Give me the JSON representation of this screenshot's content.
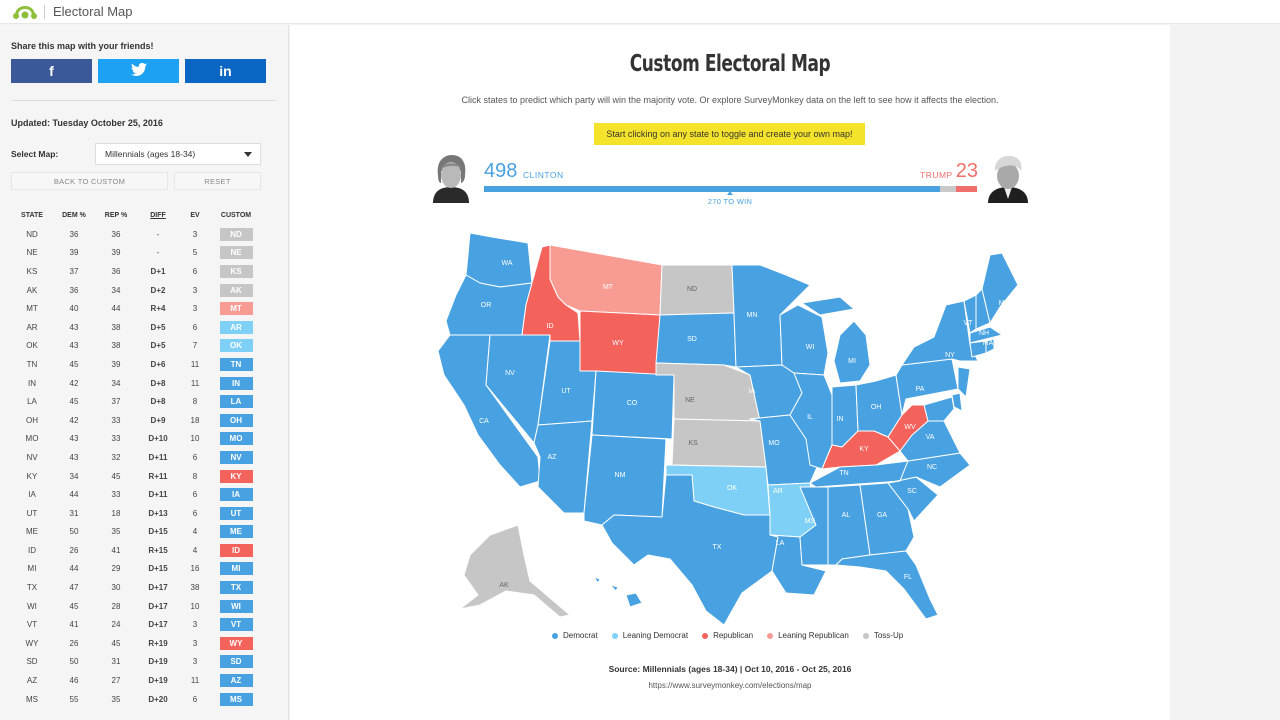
{
  "app": {
    "title": "Electoral Map"
  },
  "sidebar": {
    "share_title": "Share this map with your friends!",
    "share": {
      "facebook": "f",
      "twitter": "t",
      "linkedin": "in"
    },
    "updated": "Updated: Tuesday October 25, 2016",
    "select_label": "Select Map:",
    "select_value": "Millennials (ages 18-34)",
    "back_to_custom": "BACK TO CUSTOM",
    "reset": "RESET",
    "columns": [
      "STATE",
      "DEM %",
      "REP %",
      "DIFF",
      "EV",
      "CUSTOM"
    ],
    "rows": [
      {
        "state": "ND",
        "dem": "36",
        "rep": "36",
        "diff": "-",
        "ev": "3",
        "party": "toss"
      },
      {
        "state": "NE",
        "dem": "39",
        "rep": "39",
        "diff": "-",
        "ev": "5",
        "party": "toss"
      },
      {
        "state": "KS",
        "dem": "37",
        "rep": "36",
        "diff": "D+1",
        "ev": "6",
        "party": "toss"
      },
      {
        "state": "AK",
        "dem": "36",
        "rep": "34",
        "diff": "D+2",
        "ev": "3",
        "party": "toss"
      },
      {
        "state": "MT",
        "dem": "40",
        "rep": "44",
        "diff": "R+4",
        "ev": "3",
        "party": "lean-rep"
      },
      {
        "state": "AR",
        "dem": "43",
        "rep": "38",
        "diff": "D+5",
        "ev": "6",
        "party": "lean-dem"
      },
      {
        "state": "OK",
        "dem": "43",
        "rep": "38",
        "diff": "D+5",
        "ev": "7",
        "party": "lean-dem"
      },
      {
        "state": "TN",
        "dem": "45",
        "rep": "39",
        "diff": "D+6",
        "ev": "11",
        "party": "dem"
      },
      {
        "state": "IN",
        "dem": "42",
        "rep": "34",
        "diff": "D+8",
        "ev": "11",
        "party": "dem"
      },
      {
        "state": "LA",
        "dem": "45",
        "rep": "37",
        "diff": "D+8",
        "ev": "8",
        "party": "dem"
      },
      {
        "state": "OH",
        "dem": "42",
        "rep": "33",
        "diff": "D+9",
        "ev": "18",
        "party": "dem"
      },
      {
        "state": "MO",
        "dem": "43",
        "rep": "33",
        "diff": "D+10",
        "ev": "10",
        "party": "dem"
      },
      {
        "state": "NV",
        "dem": "43",
        "rep": "32",
        "diff": "D+11",
        "ev": "6",
        "party": "dem"
      },
      {
        "state": "KY",
        "dem": "34",
        "rep": "45",
        "diff": "R+11",
        "ev": "8",
        "party": "rep"
      },
      {
        "state": "IA",
        "dem": "44",
        "rep": "33",
        "diff": "D+11",
        "ev": "6",
        "party": "dem"
      },
      {
        "state": "UT",
        "dem": "31",
        "rep": "18",
        "diff": "D+13",
        "ev": "6",
        "party": "dem"
      },
      {
        "state": "ME",
        "dem": "50",
        "rep": "35",
        "diff": "D+15",
        "ev": "4",
        "party": "dem"
      },
      {
        "state": "ID",
        "dem": "26",
        "rep": "41",
        "diff": "R+15",
        "ev": "4",
        "party": "rep"
      },
      {
        "state": "MI",
        "dem": "44",
        "rep": "29",
        "diff": "D+15",
        "ev": "16",
        "party": "dem"
      },
      {
        "state": "TX",
        "dem": "47",
        "rep": "30",
        "diff": "D+17",
        "ev": "38",
        "party": "dem"
      },
      {
        "state": "WI",
        "dem": "45",
        "rep": "28",
        "diff": "D+17",
        "ev": "10",
        "party": "dem"
      },
      {
        "state": "VT",
        "dem": "41",
        "rep": "24",
        "diff": "D+17",
        "ev": "3",
        "party": "dem"
      },
      {
        "state": "WY",
        "dem": "26",
        "rep": "45",
        "diff": "R+19",
        "ev": "3",
        "party": "rep"
      },
      {
        "state": "SD",
        "dem": "50",
        "rep": "31",
        "diff": "D+19",
        "ev": "3",
        "party": "dem"
      },
      {
        "state": "AZ",
        "dem": "46",
        "rep": "27",
        "diff": "D+19",
        "ev": "11",
        "party": "dem"
      },
      {
        "state": "MS",
        "dem": "55",
        "rep": "35",
        "diff": "D+20",
        "ev": "6",
        "party": "dem"
      }
    ]
  },
  "main": {
    "title": "Custom Electoral Map",
    "subtitle": "Click states to predict which party will win the majority vote. Or explore SurveyMonkey data on the left to see how it affects the election.",
    "hint": "Start clicking on any state to toggle and create your own map!",
    "clinton": {
      "count": "498",
      "name": "CLINTON"
    },
    "trump": {
      "count": "23",
      "name": "TRUMP"
    },
    "win_label": "270 TO WIN",
    "bar": {
      "dem": 498,
      "tossup": 17,
      "rep": 23,
      "total": 538
    },
    "legend": [
      "Democrat",
      "Leaning Democrat",
      "Republican",
      "Leaning Republican",
      "Toss-Up"
    ],
    "source": "Source: Millennials (ages 18-34) | Oct 10, 2016 - Oct 25, 2016",
    "url": "https://www.surveymonkey.com/elections/map"
  },
  "colors": {
    "dem": "#48a1e0",
    "lean-dem": "#7fd0f7",
    "rep": "#f4625c",
    "lean-rep": "#f79b93",
    "toss": "#c6c6c6"
  },
  "map_states": [
    {
      "id": "WA",
      "party": "dem"
    },
    {
      "id": "OR",
      "party": "dem"
    },
    {
      "id": "CA",
      "party": "dem"
    },
    {
      "id": "NV",
      "party": "dem"
    },
    {
      "id": "ID",
      "party": "rep"
    },
    {
      "id": "MT",
      "party": "lean-rep"
    },
    {
      "id": "WY",
      "party": "rep"
    },
    {
      "id": "UT",
      "party": "dem"
    },
    {
      "id": "AZ",
      "party": "dem"
    },
    {
      "id": "CO",
      "party": "dem"
    },
    {
      "id": "NM",
      "party": "dem"
    },
    {
      "id": "ND",
      "party": "toss"
    },
    {
      "id": "SD",
      "party": "dem"
    },
    {
      "id": "NE",
      "party": "toss"
    },
    {
      "id": "KS",
      "party": "toss"
    },
    {
      "id": "OK",
      "party": "lean-dem"
    },
    {
      "id": "TX",
      "party": "dem"
    },
    {
      "id": "MN",
      "party": "dem"
    },
    {
      "id": "IA",
      "party": "dem"
    },
    {
      "id": "MO",
      "party": "dem"
    },
    {
      "id": "AR",
      "party": "lean-dem"
    },
    {
      "id": "LA",
      "party": "dem"
    },
    {
      "id": "WI",
      "party": "dem"
    },
    {
      "id": "IL",
      "party": "dem"
    },
    {
      "id": "MI",
      "party": "dem"
    },
    {
      "id": "IN",
      "party": "dem"
    },
    {
      "id": "OH",
      "party": "dem"
    },
    {
      "id": "KY",
      "party": "rep"
    },
    {
      "id": "TN",
      "party": "dem"
    },
    {
      "id": "MS",
      "party": "dem"
    },
    {
      "id": "AL",
      "party": "dem"
    },
    {
      "id": "GA",
      "party": "dem"
    },
    {
      "id": "FL",
      "party": "dem"
    },
    {
      "id": "SC",
      "party": "dem"
    },
    {
      "id": "NC",
      "party": "dem"
    },
    {
      "id": "VA",
      "party": "dem"
    },
    {
      "id": "WV",
      "party": "rep"
    },
    {
      "id": "PA",
      "party": "dem"
    },
    {
      "id": "NY",
      "party": "dem"
    },
    {
      "id": "VT",
      "party": "dem"
    },
    {
      "id": "NH",
      "party": "dem"
    },
    {
      "id": "ME",
      "party": "dem"
    },
    {
      "id": "MA",
      "party": "dem"
    },
    {
      "id": "CT",
      "party": "dem"
    },
    {
      "id": "RI",
      "party": "dem"
    },
    {
      "id": "NJ",
      "party": "dem"
    },
    {
      "id": "DE",
      "party": "dem"
    },
    {
      "id": "MD",
      "party": "dem"
    },
    {
      "id": "AK",
      "party": "toss"
    },
    {
      "id": "HI",
      "party": "dem"
    }
  ]
}
